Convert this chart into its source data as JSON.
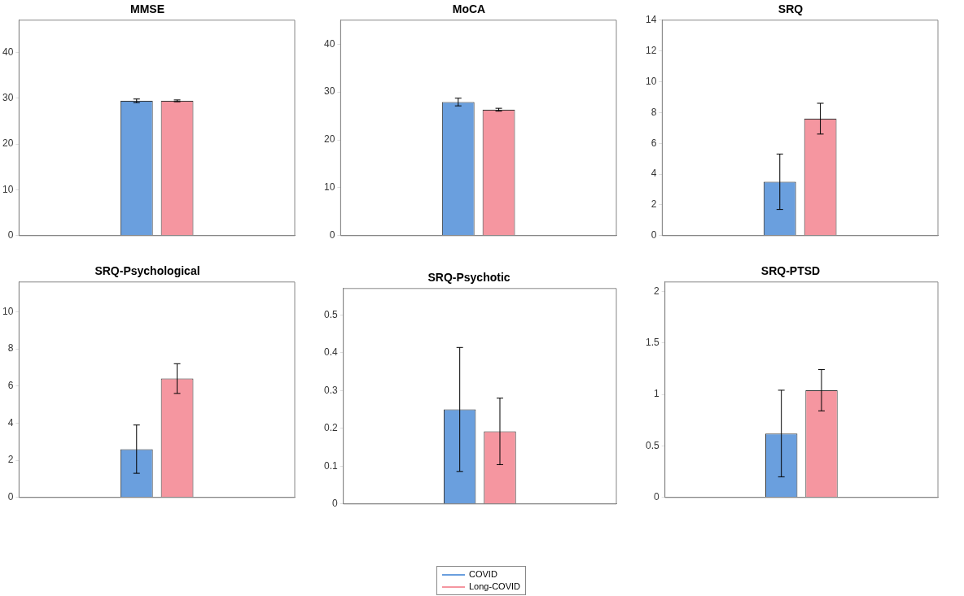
{
  "chart_data": [
    {
      "type": "bar",
      "title": "MMSE",
      "categories": [
        null,
        null
      ],
      "ylim": [
        0,
        47
      ],
      "yticks": [
        0,
        10,
        20,
        30,
        40
      ],
      "tick_labels": "y",
      "grid": false,
      "legend": "bottom",
      "series": [
        {
          "name": "COVID",
          "color": "#6a9fde",
          "values": [
            29.4,
            null
          ],
          "errors": [
            0.4,
            null
          ]
        },
        {
          "name": "Long-COVID",
          "color": "#f596a0",
          "values": [
            null,
            29.4
          ],
          "errors": [
            null,
            0.2
          ]
        }
      ]
    },
    {
      "type": "bar",
      "title": "MoCA",
      "categories": [
        null,
        null
      ],
      "ylim": [
        0,
        45
      ],
      "yticks": [
        0,
        10,
        20,
        30,
        40
      ],
      "tick_labels": "y",
      "grid": false,
      "series": [
        {
          "color": "#6a9fde",
          "values": [
            27.9,
            null
          ],
          "errors": [
            0.8,
            null
          ]
        },
        {
          "color": "#f596a0",
          "values": [
            null,
            26.3
          ],
          "errors": [
            null,
            0.3
          ]
        }
      ]
    },
    {
      "type": "bar",
      "title": "SRQ",
      "categories": [
        null,
        null
      ],
      "ylim": [
        0,
        14
      ],
      "yticks": [
        0,
        2,
        4,
        6,
        8,
        10,
        12,
        14
      ],
      "tick_labels": "y",
      "grid": false,
      "series": [
        {
          "color": "#6a9fde",
          "values": [
            3.5,
            null
          ],
          "errors": [
            1.8,
            null
          ]
        },
        {
          "color": "#f596a0",
          "values": [
            null,
            7.6
          ],
          "errors": [
            null,
            1.0
          ]
        }
      ]
    },
    {
      "type": "bar",
      "title": "SRQ-Psychological",
      "categories": [
        null,
        null
      ],
      "ylim": [
        0,
        11.6
      ],
      "yticks": [
        0,
        2,
        4,
        6,
        8,
        10
      ],
      "tick_labels": "y",
      "grid": false,
      "series": [
        {
          "color": "#6a9fde",
          "values": [
            2.6,
            null
          ],
          "errors": [
            1.3,
            null
          ]
        },
        {
          "color": "#f596a0",
          "values": [
            null,
            6.4
          ],
          "errors": [
            null,
            0.8
          ]
        }
      ]
    },
    {
      "type": "bar",
      "title": "SRQ-Psychotic",
      "categories": [
        null,
        null
      ],
      "ylim": [
        0,
        0.57
      ],
      "yticks": [
        0,
        0.1,
        0.2,
        0.3,
        0.4,
        0.5
      ],
      "tick_labels": "y",
      "grid": false,
      "series": [
        {
          "color": "#6a9fde",
          "values": [
            0.25,
            null
          ],
          "errors": [
            0.164,
            null
          ]
        },
        {
          "color": "#f596a0",
          "values": [
            null,
            0.192
          ],
          "errors": [
            null,
            0.088
          ]
        }
      ]
    },
    {
      "type": "bar",
      "title": "SRQ-PTSD",
      "categories": [
        null,
        null
      ],
      "ylim": [
        0,
        2.09
      ],
      "yticks": [
        0,
        0.5,
        1,
        1.5,
        2
      ],
      "tick_labels": "y",
      "grid": false,
      "series": [
        {
          "color": "#6a9fde",
          "values": [
            0.62,
            null
          ],
          "errors": [
            0.42,
            null
          ]
        },
        {
          "color": "#f596a0",
          "values": [
            null,
            1.04
          ],
          "errors": [
            null,
            0.2
          ]
        }
      ]
    }
  ]
}
